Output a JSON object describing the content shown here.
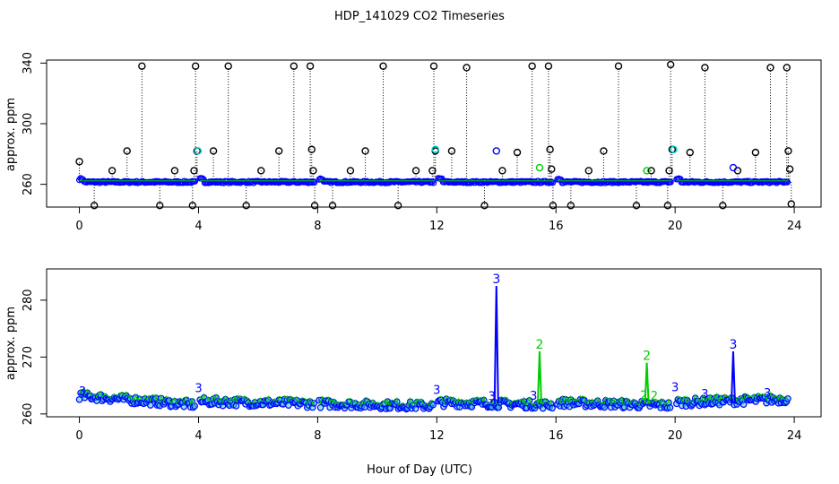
{
  "chart_data": {
    "type": "scatter",
    "title": "HDP_141029  CO2 Timeseries",
    "xlabel": "Hour of Day (UTC)",
    "colors": {
      "raw": "#000000",
      "primary": "#0000ff",
      "secondary": "#00cc00",
      "flag": "#00cccc"
    },
    "panels": [
      {
        "id": "top",
        "ylabel": "approx. ppm",
        "xlim": [
          -1.1,
          24.9
        ],
        "ylim": [
          245,
          342
        ],
        "xticks": [
          0,
          4,
          8,
          12,
          16,
          20,
          24
        ],
        "yticks": [
          260,
          300,
          340
        ],
        "baseline": 261.5,
        "spikes": [
          {
            "x": 0.0,
            "y": 275
          },
          {
            "x": 0.5,
            "y": 246
          },
          {
            "x": 1.1,
            "y": 269
          },
          {
            "x": 1.6,
            "y": 282
          },
          {
            "x": 2.1,
            "y": 338
          },
          {
            "x": 2.7,
            "y": 246
          },
          {
            "x": 3.2,
            "y": 269
          },
          {
            "x": 3.8,
            "y": 246
          },
          {
            "x": 3.85,
            "y": 269
          },
          {
            "x": 3.9,
            "y": 338
          },
          {
            "x": 3.95,
            "y": 282
          },
          {
            "x": 4.5,
            "y": 282
          },
          {
            "x": 5.0,
            "y": 338
          },
          {
            "x": 5.6,
            "y": 246
          },
          {
            "x": 6.1,
            "y": 269
          },
          {
            "x": 6.7,
            "y": 282
          },
          {
            "x": 7.2,
            "y": 338
          },
          {
            "x": 7.75,
            "y": 338
          },
          {
            "x": 7.8,
            "y": 283
          },
          {
            "x": 7.85,
            "y": 269
          },
          {
            "x": 7.9,
            "y": 246
          },
          {
            "x": 8.5,
            "y": 246
          },
          {
            "x": 9.1,
            "y": 269
          },
          {
            "x": 9.6,
            "y": 282
          },
          {
            "x": 10.2,
            "y": 338
          },
          {
            "x": 10.7,
            "y": 246
          },
          {
            "x": 11.3,
            "y": 269
          },
          {
            "x": 11.85,
            "y": 269
          },
          {
            "x": 11.9,
            "y": 338
          },
          {
            "x": 11.95,
            "y": 282
          },
          {
            "x": 12.5,
            "y": 282
          },
          {
            "x": 13.0,
            "y": 337
          },
          {
            "x": 13.6,
            "y": 246
          },
          {
            "x": 14.2,
            "y": 269
          },
          {
            "x": 14.7,
            "y": 281
          },
          {
            "x": 15.2,
            "y": 338
          },
          {
            "x": 15.75,
            "y": 338
          },
          {
            "x": 15.8,
            "y": 283
          },
          {
            "x": 15.85,
            "y": 270
          },
          {
            "x": 15.9,
            "y": 246
          },
          {
            "x": 16.5,
            "y": 246
          },
          {
            "x": 17.1,
            "y": 269
          },
          {
            "x": 17.6,
            "y": 282
          },
          {
            "x": 18.1,
            "y": 338
          },
          {
            "x": 18.7,
            "y": 246
          },
          {
            "x": 19.2,
            "y": 269
          },
          {
            "x": 19.75,
            "y": 246
          },
          {
            "x": 19.8,
            "y": 269
          },
          {
            "x": 19.85,
            "y": 339
          },
          {
            "x": 19.9,
            "y": 283
          },
          {
            "x": 20.5,
            "y": 281
          },
          {
            "x": 21.0,
            "y": 337
          },
          {
            "x": 21.6,
            "y": 246
          },
          {
            "x": 22.1,
            "y": 269
          },
          {
            "x": 22.7,
            "y": 281
          },
          {
            "x": 23.2,
            "y": 337
          },
          {
            "x": 23.75,
            "y": 337
          },
          {
            "x": 23.8,
            "y": 282
          },
          {
            "x": 23.85,
            "y": 270
          },
          {
            "x": 23.9,
            "y": 247
          }
        ],
        "colored_points": [
          {
            "x": 3.98,
            "y": 282,
            "c": "flag"
          },
          {
            "x": 11.95,
            "y": 283,
            "c": "flag"
          },
          {
            "x": 14.0,
            "y": 282,
            "c": "primary"
          },
          {
            "x": 15.45,
            "y": 271,
            "c": "secondary"
          },
          {
            "x": 19.05,
            "y": 269,
            "c": "secondary"
          },
          {
            "x": 19.95,
            "y": 283,
            "c": "flag"
          },
          {
            "x": 21.95,
            "y": 271,
            "c": "primary"
          }
        ]
      },
      {
        "id": "bottom",
        "ylabel": "approx. ppm",
        "xlim": [
          -1.1,
          24.9
        ],
        "ylim": [
          259.5,
          285.5
        ],
        "xticks": [
          0,
          4,
          8,
          12,
          16,
          20,
          24
        ],
        "yticks": [
          260,
          270,
          280
        ],
        "gaps": [
          [
            3.95,
            4.05
          ],
          [
            7.95,
            8.05
          ],
          [
            11.95,
            12.05
          ],
          [
            15.95,
            16.05
          ],
          [
            19.9,
            20.05
          ]
        ],
        "segments": [
          {
            "x0": 0.0,
            "x1": 3.9,
            "y0": 263.2,
            "y1": 261.6
          },
          {
            "x0": 4.05,
            "x1": 7.9,
            "y0": 262.2,
            "y1": 261.8
          },
          {
            "x0": 8.05,
            "x1": 11.9,
            "y0": 261.8,
            "y1": 261.4
          },
          {
            "x0": 12.05,
            "x1": 15.9,
            "y0": 262.0,
            "y1": 261.6
          },
          {
            "x0": 16.05,
            "x1": 19.85,
            "y0": 262.0,
            "y1": 261.5
          },
          {
            "x0": 20.05,
            "x1": 23.8,
            "y0": 262.0,
            "y1": 262.6
          }
        ],
        "peaks": [
          {
            "x": 14.0,
            "y": 282.5,
            "label": "3",
            "c": "primary"
          },
          {
            "x": 15.45,
            "y": 271.0,
            "label": "2",
            "c": "secondary"
          },
          {
            "x": 19.05,
            "y": 269.0,
            "label": "2",
            "c": "secondary"
          },
          {
            "x": 21.95,
            "y": 271.0,
            "label": "3",
            "c": "primary"
          }
        ],
        "markers": [
          {
            "x": 0.1,
            "y": 263.3,
            "label": "3",
            "c": "primary"
          },
          {
            "x": 4.0,
            "y": 263.8,
            "label": "3",
            "c": "primary"
          },
          {
            "x": 12.0,
            "y": 263.5,
            "label": "3",
            "c": "primary"
          },
          {
            "x": 13.85,
            "y": 262.4,
            "label": "3",
            "c": "primary"
          },
          {
            "x": 15.25,
            "y": 262.5,
            "label": "3",
            "c": "primary"
          },
          {
            "x": 18.95,
            "y": 262.6,
            "label": "2",
            "c": "secondary"
          },
          {
            "x": 19.3,
            "y": 262.5,
            "label": "2",
            "c": "secondary"
          },
          {
            "x": 20.0,
            "y": 264.0,
            "label": "3",
            "c": "primary"
          },
          {
            "x": 21.0,
            "y": 262.8,
            "label": "3",
            "c": "primary"
          },
          {
            "x": 23.1,
            "y": 263.0,
            "label": "3",
            "c": "primary"
          }
        ]
      }
    ]
  }
}
